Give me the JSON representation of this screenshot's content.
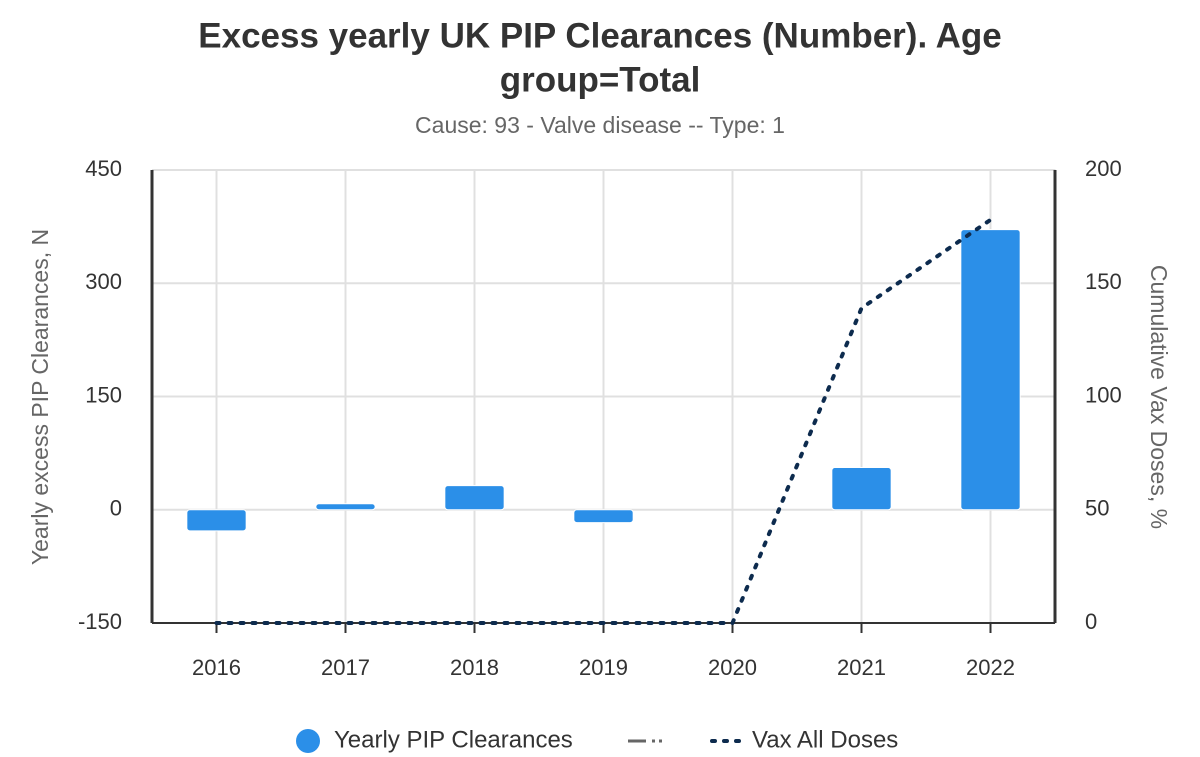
{
  "chart_data": {
    "type": "bar",
    "title": "Excess yearly UK PIP Clearances (Number). Age",
    "title_line2": "group=Total",
    "subtitle": "Cause: 93 - Valve disease -- Type: 1",
    "y_label": "Yearly excess PIP Clearances, N",
    "y2_label": "Cumulative Vax Doses, %",
    "categories": [
      "2016",
      "2017",
      "2018",
      "2019",
      "2020",
      "2021",
      "2022"
    ],
    "series": [
      {
        "name": "Yearly PIP Clearances",
        "type": "bar",
        "color": "#2b8fe8",
        "axis": "y",
        "values": [
          -28,
          8,
          32,
          -17,
          0,
          56,
          371
        ]
      },
      {
        "name": "Vax All Doses",
        "type": "line",
        "color": "#0d2b4e",
        "axis": "y2",
        "dash": "dotted",
        "values": [
          0,
          0,
          0,
          0,
          0,
          139,
          178
        ]
      }
    ],
    "ylim": [
      -150,
      450
    ],
    "yticks": [
      -150,
      0,
      150,
      300,
      450
    ],
    "y2lim": [
      0,
      200
    ],
    "y2ticks": [
      0,
      50,
      100,
      150,
      200
    ],
    "grid": true,
    "legend": "bottom"
  }
}
